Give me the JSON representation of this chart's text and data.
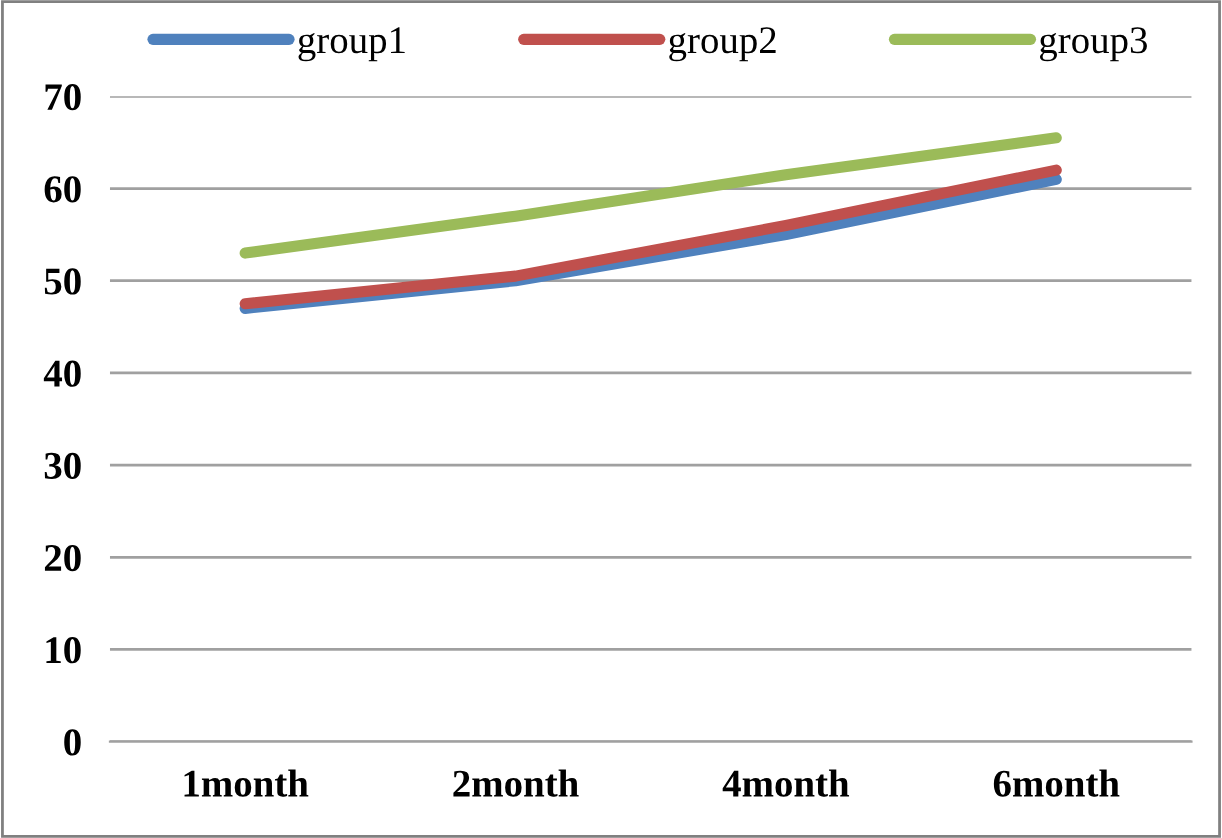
{
  "chart_data": {
    "type": "line",
    "categories": [
      "1month",
      "2month",
      "4month",
      "6month"
    ],
    "series": [
      {
        "name": "group1",
        "color": "#4f81bd",
        "values": [
          47,
          50,
          55,
          61
        ]
      },
      {
        "name": "group2",
        "color": "#c0504d",
        "values": [
          47.5,
          50.5,
          56,
          62
        ]
      },
      {
        "name": "group3",
        "color": "#9bbb59",
        "values": [
          53,
          57,
          61.5,
          65.5
        ]
      }
    ],
    "ylim": [
      0,
      70
    ],
    "yticks": [
      0,
      10,
      20,
      30,
      40,
      50,
      60,
      70
    ],
    "grid": "y",
    "legend": "top",
    "marker": "none",
    "line_style": "solid"
  }
}
